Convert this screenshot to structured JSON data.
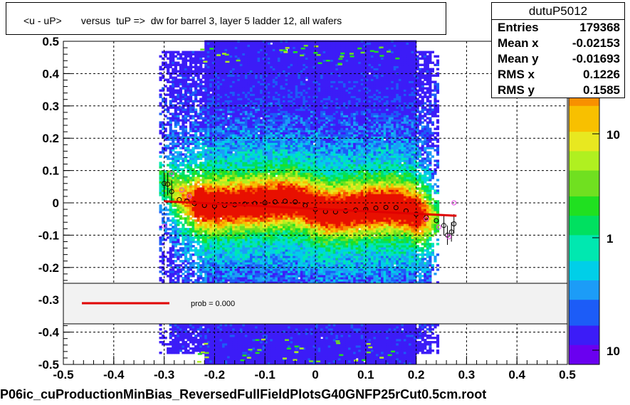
{
  "title": "<u - uP>       versus  tuP =>  dw for barrel 3, layer 5 ladder 12, all wafers",
  "stats": {
    "name": "dutuP5012",
    "rows": [
      {
        "key": "Entries",
        "value": "179368"
      },
      {
        "key": "Mean x",
        "value": "-0.02153"
      },
      {
        "key": "Mean y",
        "value": "-0.01693"
      },
      {
        "key": "RMS x",
        "value": "0.1226"
      },
      {
        "key": "RMS y",
        "value": "0.1585"
      }
    ]
  },
  "legend": {
    "label": "prob = 0.000",
    "line_color": "#e00000"
  },
  "footer": "P06ic_cuProductionMinBias_ReversedFullFieldPlotsG40GNFP25rCut0.5cm.root",
  "chart_data": {
    "type": "heatmap",
    "xlim": [
      -0.5,
      0.5
    ],
    "ylim": [
      -0.5,
      0.5
    ],
    "x_ticks": [
      "-0.5",
      "-0.4",
      "-0.3",
      "-0.2",
      "-0.1",
      "0",
      "0.1",
      "0.2",
      "0.3",
      "0.4",
      "0.5"
    ],
    "y_ticks": [
      "-0.5",
      "-0.4",
      "-0.3",
      "-0.2",
      "-0.1",
      "0",
      "0.1",
      "0.2",
      "0.3",
      "0.4",
      "0.5"
    ],
    "grid": true,
    "colorbar": {
      "scale": "log",
      "labels": [
        "1",
        "10"
      ],
      "partial_label": "10"
    },
    "band": {
      "x_range": [
        -0.3,
        0.23
      ],
      "core_x_range": [
        -0.22,
        0.2
      ]
    },
    "profile_points": [
      {
        "x": -0.3,
        "y": 0.06
      },
      {
        "x": -0.293,
        "y": 0.058
      },
      {
        "x": -0.285,
        "y": 0.035
      },
      {
        "x": -0.27,
        "y": 0.01
      },
      {
        "x": -0.255,
        "y": 0.005
      },
      {
        "x": -0.24,
        "y": -0.002
      },
      {
        "x": -0.22,
        "y": -0.008
      },
      {
        "x": -0.2,
        "y": -0.01
      },
      {
        "x": -0.18,
        "y": -0.008
      },
      {
        "x": -0.16,
        "y": -0.006
      },
      {
        "x": -0.14,
        "y": -0.004
      },
      {
        "x": -0.12,
        "y": -0.002
      },
      {
        "x": -0.1,
        "y": 0.0
      },
      {
        "x": -0.08,
        "y": 0.003
      },
      {
        "x": -0.06,
        "y": 0.005
      },
      {
        "x": -0.04,
        "y": 0.003
      },
      {
        "x": -0.02,
        "y": -0.008
      },
      {
        "x": 0.0,
        "y": -0.02
      },
      {
        "x": 0.02,
        "y": -0.027
      },
      {
        "x": 0.04,
        "y": -0.028
      },
      {
        "x": 0.06,
        "y": -0.025
      },
      {
        "x": 0.08,
        "y": -0.022
      },
      {
        "x": 0.1,
        "y": -0.02
      },
      {
        "x": 0.12,
        "y": -0.016
      },
      {
        "x": 0.14,
        "y": -0.014
      },
      {
        "x": 0.16,
        "y": -0.015
      },
      {
        "x": 0.18,
        "y": -0.025
      },
      {
        "x": 0.2,
        "y": -0.035
      },
      {
        "x": 0.22,
        "y": -0.045
      },
      {
        "x": 0.24,
        "y": -0.055
      },
      {
        "x": 0.255,
        "y": -0.07
      },
      {
        "x": 0.262,
        "y": -0.1
      },
      {
        "x": 0.27,
        "y": -0.09
      },
      {
        "x": 0.275,
        "y": -0.065
      }
    ],
    "profile_points_alt": [
      {
        "x": -0.3,
        "y": -0.072
      },
      {
        "x": -0.285,
        "y": 0.09
      },
      {
        "x": -0.265,
        "y": 0.04
      },
      {
        "x": -0.25,
        "y": 0.02
      },
      {
        "x": 0.22,
        "y": -0.05
      },
      {
        "x": 0.245,
        "y": -0.075
      },
      {
        "x": 0.265,
        "y": -0.105
      },
      {
        "x": 0.275,
        "y": 0.0
      }
    ],
    "fit_line": {
      "x": [
        -0.3,
        0.28
      ],
      "y": [
        0.005,
        -0.04
      ]
    }
  }
}
